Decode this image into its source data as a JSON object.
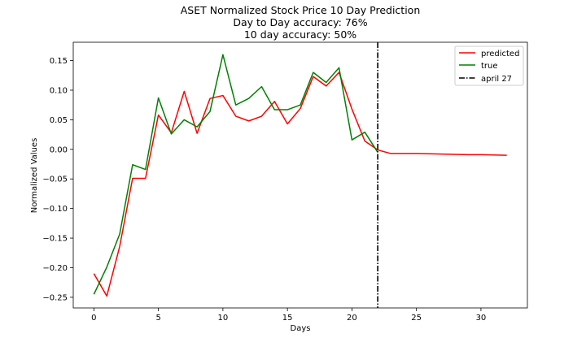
{
  "chart_data": {
    "type": "line",
    "title_lines": [
      "ASET Normalized Stock Price 10 Day Prediction",
      "Day to Day accuracy: 76%",
      "10 day accuracy: 50%"
    ],
    "xlabel": "Days",
    "ylabel": "Normalized Values",
    "xlim": [
      -1.6,
      33.6
    ],
    "ylim": [
      -0.268,
      0.181
    ],
    "xticks": [
      0,
      5,
      10,
      15,
      20,
      25,
      30
    ],
    "yticks": [
      -0.25,
      -0.2,
      -0.15,
      -0.1,
      -0.05,
      0.0,
      0.05,
      0.1,
      0.15
    ],
    "ytick_labels": [
      "−0.25",
      "−0.20",
      "−0.15",
      "−0.10",
      "−0.05",
      "0.00",
      "0.05",
      "0.10",
      "0.15"
    ],
    "legend_position": "top-right",
    "grid": false,
    "series": [
      {
        "name": "predicted",
        "color": "#ff0000",
        "x": [
          0,
          1,
          2,
          3,
          4,
          5,
          6,
          7,
          8,
          9,
          10,
          11,
          12,
          13,
          14,
          15,
          16,
          17,
          18,
          19,
          20,
          21,
          22,
          23,
          24,
          25,
          26,
          27,
          28,
          29,
          30,
          31,
          32
        ],
        "values": [
          -0.21,
          -0.248,
          -0.164,
          -0.049,
          -0.049,
          0.058,
          0.028,
          0.098,
          0.027,
          0.086,
          0.091,
          0.056,
          0.048,
          0.056,
          0.081,
          0.043,
          0.069,
          0.123,
          0.107,
          0.13,
          0.068,
          0.014,
          -0.001,
          -0.007,
          -0.007,
          -0.007,
          -0.0075,
          -0.008,
          -0.0085,
          -0.009,
          -0.009,
          -0.0095,
          -0.01
        ]
      },
      {
        "name": "true",
        "color": "#008000",
        "x": [
          0,
          1,
          2,
          3,
          4,
          5,
          6,
          7,
          8,
          9,
          10,
          11,
          12,
          13,
          14,
          15,
          16,
          17,
          18,
          19,
          20,
          21,
          22
        ],
        "values": [
          -0.245,
          -0.199,
          -0.143,
          -0.026,
          -0.034,
          0.087,
          0.026,
          0.05,
          0.038,
          0.064,
          0.16,
          0.075,
          0.086,
          0.106,
          0.067,
          0.067,
          0.075,
          0.13,
          0.113,
          0.138,
          0.016,
          0.029,
          -0.005
        ]
      }
    ],
    "vline": {
      "name": "april 27",
      "x": 22,
      "color": "#000000",
      "style": "dash-dot"
    }
  }
}
